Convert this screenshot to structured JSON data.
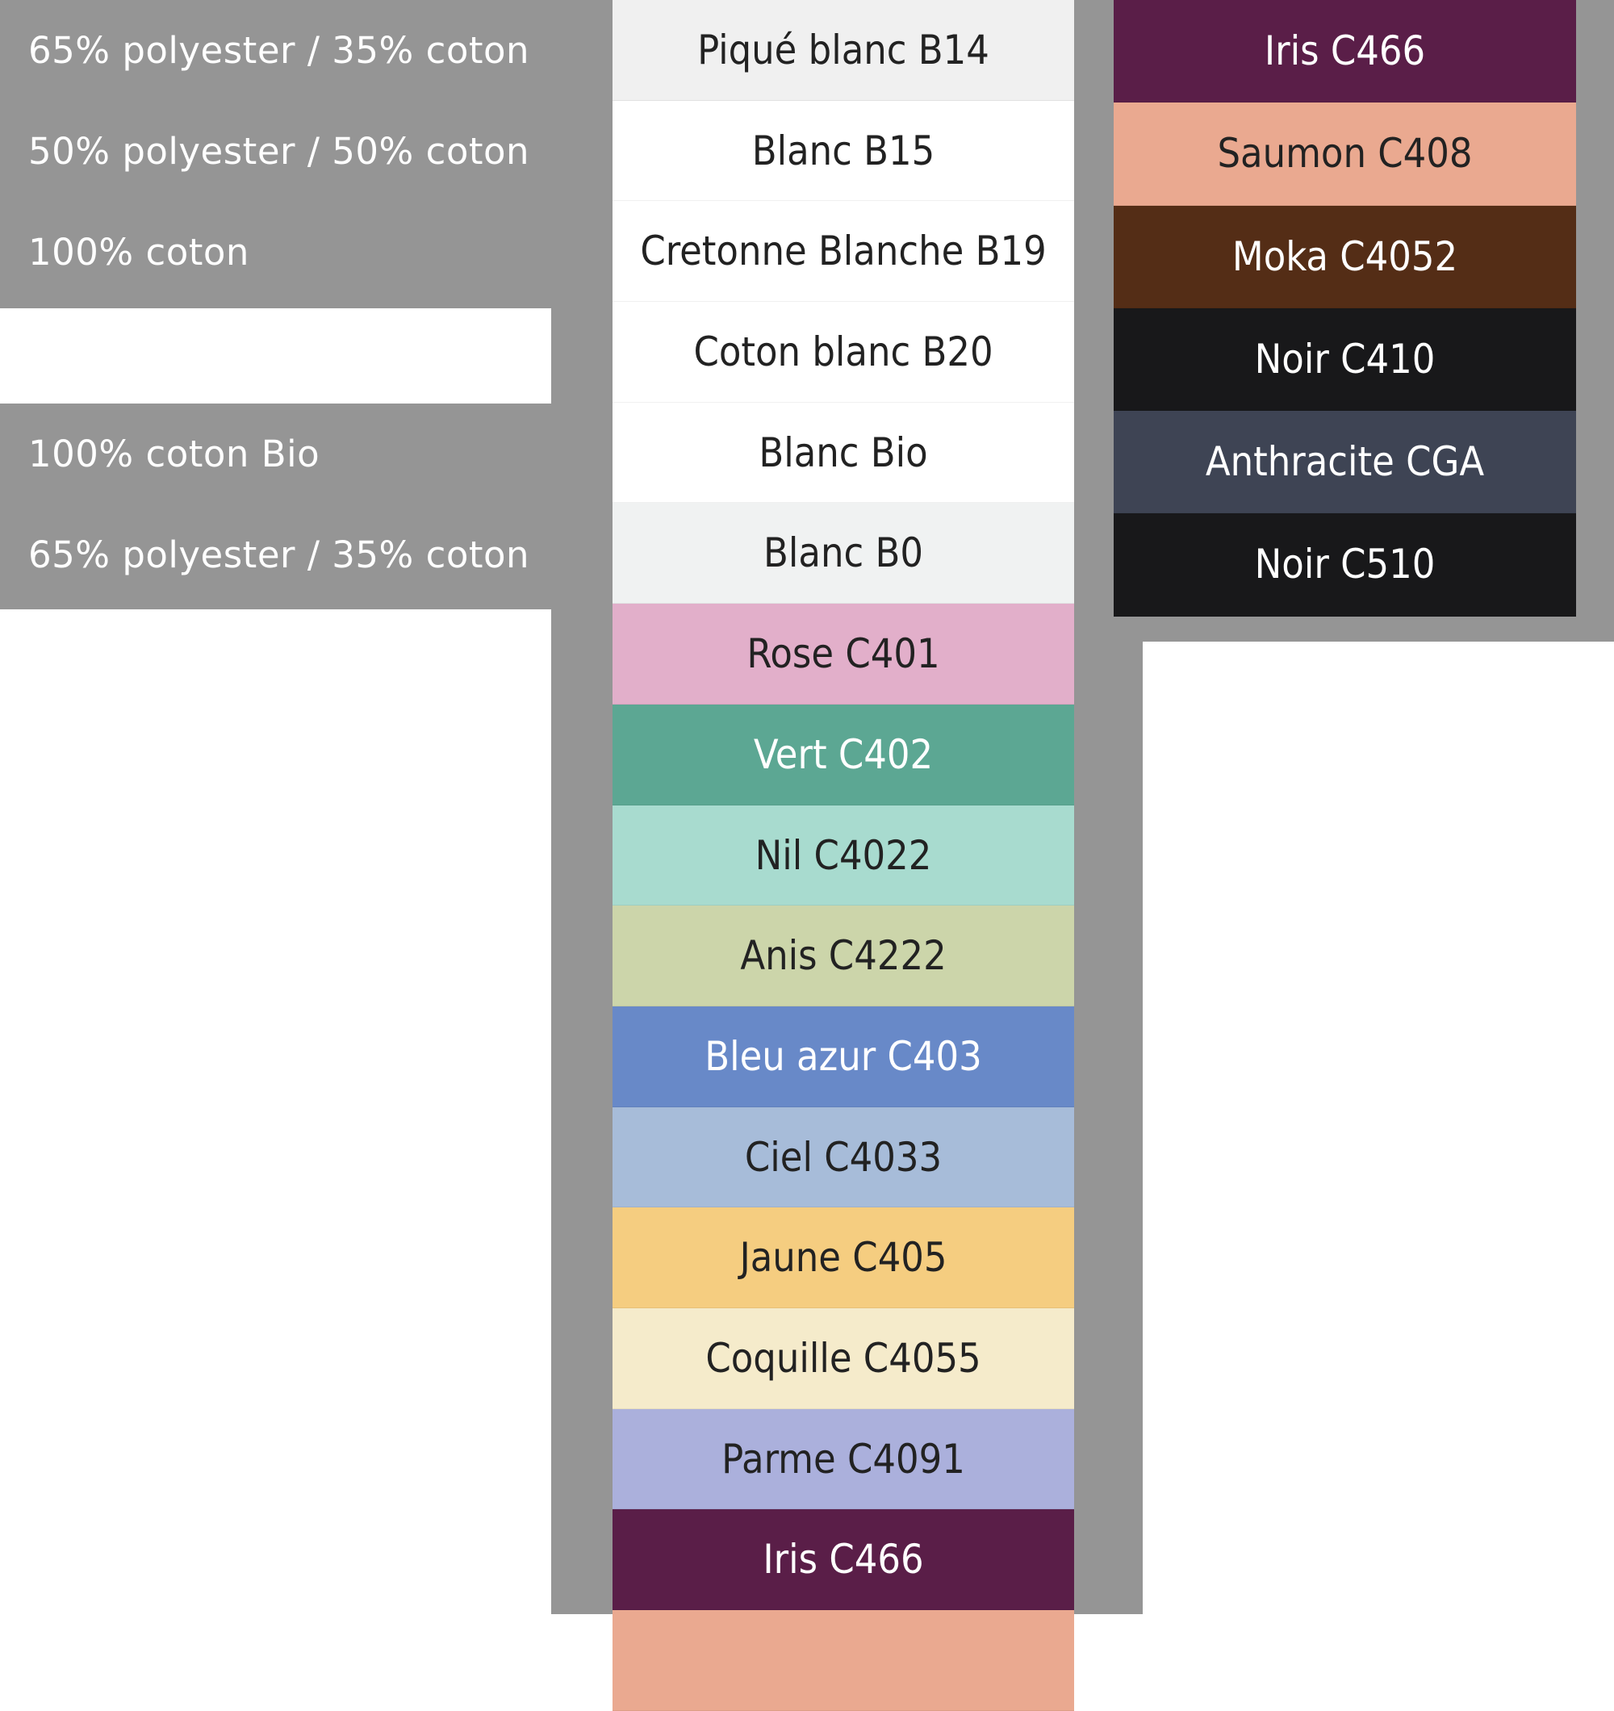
{
  "compositions": [
    {
      "label": "65% polyester / 35% coton"
    },
    {
      "label": "50% polyester / 50% coton"
    },
    {
      "label": "100% coton"
    },
    {
      "label": "100% coton Bio"
    },
    {
      "label": "65% polyester / 35% coton"
    }
  ],
  "colors_main": [
    {
      "label": "Piqué blanc B14",
      "bg": "#f0f0f0",
      "fg": "#222222"
    },
    {
      "label": "Blanc B15",
      "bg": "#ffffff",
      "fg": "#222222"
    },
    {
      "label": "Cretonne Blanche B19",
      "bg": "#ffffff",
      "fg": "#222222"
    },
    {
      "label": "Coton blanc B20",
      "bg": "#ffffff",
      "fg": "#222222"
    },
    {
      "label": "Blanc Bio",
      "bg": "#ffffff",
      "fg": "#222222"
    },
    {
      "label": "Blanc B0",
      "bg": "#f0f2f2",
      "fg": "#222222"
    },
    {
      "label": "Rose C401",
      "bg": "#e2afca",
      "fg": "#222222"
    },
    {
      "label": "Vert C402",
      "bg": "#5ca793",
      "fg": "#ffffff"
    },
    {
      "label": "Nil C4022",
      "bg": "#a8dbcf",
      "fg": "#222222"
    },
    {
      "label": "Anis C4222",
      "bg": "#ccd5aa",
      "fg": "#222222"
    },
    {
      "label": "Bleu azur C403",
      "bg": "#6889c8",
      "fg": "#ffffff"
    },
    {
      "label": "Ciel C4033",
      "bg": "#a7bcd9",
      "fg": "#222222"
    },
    {
      "label": "Jaune C405",
      "bg": "#f5cd80",
      "fg": "#222222"
    },
    {
      "label": "Coquille C4055",
      "bg": "#f5ebcb",
      "fg": "#222222"
    },
    {
      "label": "Parme C4091",
      "bg": "#abb0dc",
      "fg": "#222222"
    },
    {
      "label": "Iris C466",
      "bg": "#5a1e48",
      "fg": "#ffffff"
    },
    {
      "label": "",
      "bg": "#eaa990",
      "fg": "#222222"
    }
  ],
  "colors_side": [
    {
      "label": "Iris C466",
      "bg": "#5a1e48",
      "fg": "#ffffff"
    },
    {
      "label": "Saumon C408",
      "bg": "#eaa990",
      "fg": "#222222"
    },
    {
      "label": "Moka C4052",
      "bg": "#542d16",
      "fg": "#ffffff"
    },
    {
      "label": "Noir C410",
      "bg": "#18181a",
      "fg": "#ffffff"
    },
    {
      "label": "Anthracite CGA",
      "bg": "#3e4454",
      "fg": "#ffffff"
    },
    {
      "label": "Noir C510",
      "bg": "#18181a",
      "fg": "#ffffff"
    }
  ]
}
